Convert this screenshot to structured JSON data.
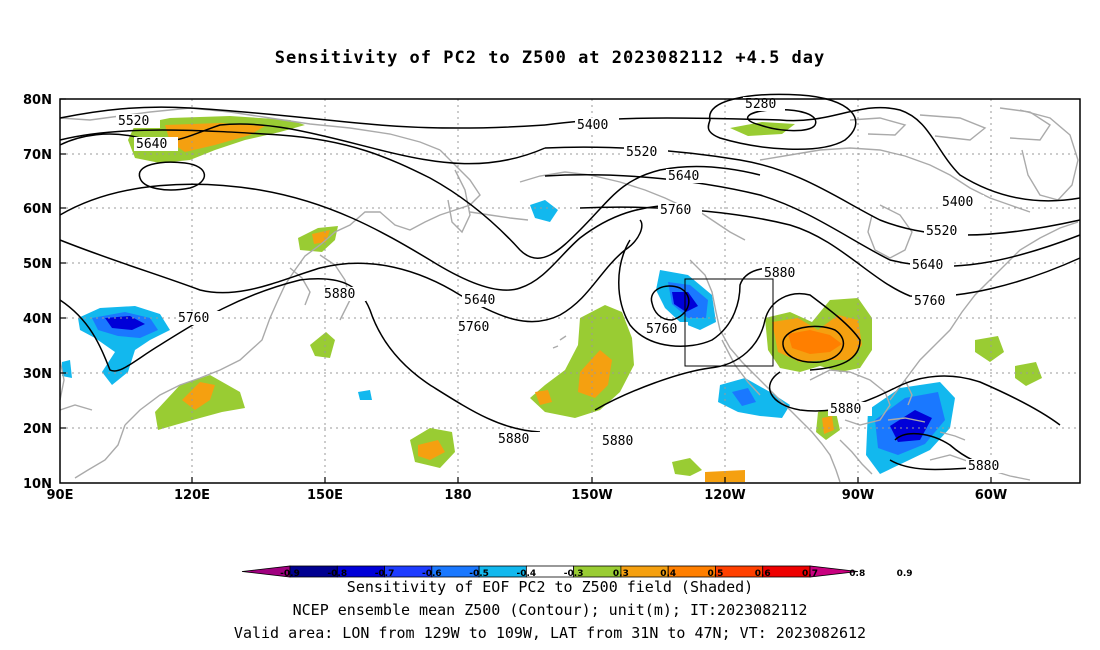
{
  "title": "Sensitivity of PC2 to Z500 at 2023082112 +4.5 day",
  "axes": {
    "lat_ticks": [
      "80N",
      "70N",
      "60N",
      "50N",
      "40N",
      "30N",
      "20N",
      "10N"
    ],
    "lon_ticks": [
      "90E",
      "120E",
      "150E",
      "180",
      "150W",
      "120W",
      "90W",
      "60W"
    ]
  },
  "contours": {
    "labels": [
      "5280",
      "5400",
      "5520",
      "5640",
      "5760",
      "5880",
      "5520",
      "5640",
      "5400",
      "5520",
      "5640",
      "5760",
      "5880",
      "5760",
      "5640",
      "5760",
      "5880",
      "5880",
      "5880",
      "5880",
      "5880",
      "5760"
    ]
  },
  "colorbar": {
    "tick_labels": [
      "-0.9",
      "-0.8",
      "-0.7",
      "-0.6",
      "-0.5",
      "-0.4",
      "-0.3",
      "0.3",
      "0.4",
      "0.5",
      "0.6",
      "0.7",
      "0.8",
      "0.9"
    ],
    "colors": [
      "#a0007f",
      "#000090",
      "#0000d8",
      "#1e3cff",
      "#1a78ff",
      "#12b8ee",
      "#ffffff",
      "#99cc33",
      "#f5a010",
      "#ff7f00",
      "#ff4000",
      "#ee0000",
      "#c8007f"
    ]
  },
  "valid_area": {
    "lon_from": "129W",
    "lon_to": "109W",
    "lat_from": "31N",
    "lat_to": "47N"
  },
  "footer": {
    "line1": "Sensitivity of EOF PC2 to Z500 field (Shaded)",
    "line2": "NCEP ensemble mean Z500 (Contour); unit(m); IT:2023082112",
    "line3": "Valid area: LON from 129W to 109W, LAT from 31N to 47N; VT: 2023082612"
  }
}
